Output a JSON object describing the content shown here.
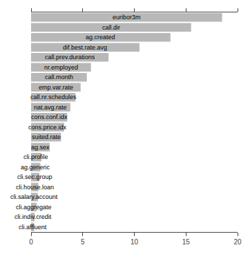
{
  "chart_data": {
    "type": "bar",
    "orientation": "horizontal",
    "categories": [
      "euribor3m",
      "call.dir",
      "ag.created",
      "dif.best.rate.avg",
      "call.prev.durations",
      "nr.employed",
      "call.month",
      "emp.var.rate",
      "call.nr.schedules",
      "nat.avg.rate",
      "cons.conf.idx",
      "cons.price.idx",
      "suited.rate",
      "ag.sex",
      "cli.profile",
      "ag.generic",
      "cli.sec.group",
      "cli.house.loan",
      "cli.salary.account",
      "cli.aggregate",
      "cli.indiv.credit",
      "cli.affluent"
    ],
    "values": [
      18.5,
      15.5,
      13.5,
      10.5,
      7.5,
      5.8,
      5.4,
      4.8,
      4.3,
      3.8,
      3.5,
      3.2,
      2.9,
      1.8,
      1.0,
      0.9,
      0.8,
      0.7,
      0.65,
      0.55,
      0.35,
      0.3
    ],
    "color": "#b8b8b8",
    "xlim": [
      0,
      20
    ],
    "xticks": [
      0,
      5,
      10,
      15,
      20
    ],
    "grid": false,
    "tick_labels": "x"
  }
}
